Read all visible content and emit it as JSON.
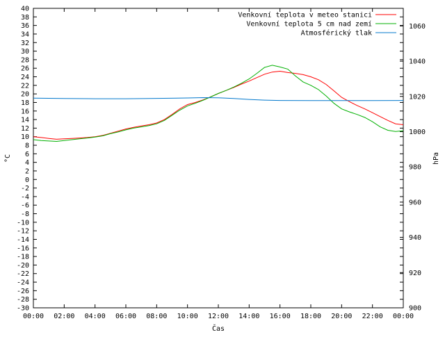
{
  "chart_data": {
    "type": "line",
    "xlabel": "Čas",
    "ylabel_left": "°C",
    "ylabel_right": "hPa",
    "ylim_left": [
      -30,
      40
    ],
    "ylim_right": [
      900,
      1070
    ],
    "xlim": [
      0,
      24
    ],
    "x_ticks": [
      "00:00",
      "02:00",
      "04:00",
      "06:00",
      "08:00",
      "10:00",
      "12:00",
      "14:00",
      "16:00",
      "18:00",
      "20:00",
      "22:00",
      "00:00"
    ],
    "y_left_ticks": [
      40,
      38,
      36,
      34,
      32,
      30,
      28,
      26,
      24,
      22,
      20,
      18,
      16,
      14,
      12,
      10,
      8,
      6,
      4,
      2,
      0,
      -2,
      -4,
      -6,
      -8,
      -10,
      -12,
      -14,
      -16,
      -18,
      -20,
      -22,
      -24,
      -26,
      -28,
      -30
    ],
    "y_right_ticks": [
      1060,
      1040,
      1020,
      1000,
      980,
      960,
      940,
      920,
      900
    ],
    "legend_position": "top-right",
    "grid": false,
    "series": [
      {
        "name": "Venkovní teplota v meteo stanici",
        "color": "#ff0000",
        "axis": "left",
        "x": [
          0,
          0.5,
          1,
          1.5,
          2,
          2.5,
          3,
          3.5,
          4,
          4.5,
          5,
          5.5,
          6,
          6.5,
          7,
          7.5,
          8,
          8.5,
          9,
          9.5,
          10,
          10.5,
          11,
          11.5,
          12,
          12.5,
          13,
          13.5,
          14,
          14.5,
          15,
          15.5,
          16,
          16.5,
          17,
          17.5,
          18,
          18.5,
          19,
          19.5,
          20,
          20.5,
          21,
          21.5,
          22,
          22.5,
          23,
          23.5,
          24
        ],
        "values": [
          10,
          9.8,
          9.6,
          9.4,
          9.5,
          9.6,
          9.7,
          9.8,
          10.0,
          10.3,
          10.8,
          11.3,
          11.8,
          12.2,
          12.5,
          12.8,
          13.2,
          14.0,
          15.2,
          16.5,
          17.5,
          18.0,
          18.6,
          19.3,
          20.1,
          20.8,
          21.5,
          22.3,
          23.0,
          23.8,
          24.6,
          25.1,
          25.3,
          25.0,
          24.8,
          24.5,
          24.0,
          23.3,
          22.2,
          20.7,
          19.2,
          18.2,
          17.3,
          16.5,
          15.6,
          14.7,
          13.8,
          13.0,
          12.8
        ]
      },
      {
        "name": "Venkovní teplota 5 cm nad zemí",
        "color": "#00b000",
        "axis": "left",
        "x": [
          0,
          0.5,
          1,
          1.5,
          2,
          2.5,
          3,
          3.5,
          4,
          4.5,
          5,
          5.5,
          6,
          6.5,
          7,
          7.5,
          8,
          8.5,
          9,
          9.5,
          10,
          10.5,
          11,
          11.5,
          12,
          12.5,
          13,
          13.5,
          14,
          14.5,
          15,
          15.5,
          16,
          16.5,
          17,
          17.5,
          18,
          18.5,
          19,
          19.5,
          20,
          20.5,
          21,
          21.5,
          22,
          22.5,
          23,
          23.5,
          24
        ],
        "values": [
          9.3,
          9.1,
          9.0,
          8.9,
          9.1,
          9.3,
          9.5,
          9.7,
          9.9,
          10.2,
          10.7,
          11.1,
          11.6,
          12.0,
          12.3,
          12.6,
          13.0,
          13.8,
          15.0,
          16.2,
          17.2,
          17.8,
          18.5,
          19.3,
          20.1,
          20.8,
          21.6,
          22.5,
          23.5,
          24.8,
          26.2,
          26.7,
          26.3,
          25.8,
          24.2,
          22.8,
          22.0,
          21.0,
          19.5,
          17.8,
          16.5,
          15.8,
          15.2,
          14.5,
          13.5,
          12.3,
          11.5,
          11.2,
          11.4
        ]
      },
      {
        "name": "Atmosférický tlak",
        "color": "#0077cc",
        "axis": "right",
        "x": [
          0,
          2,
          4,
          6,
          8,
          10,
          11,
          12,
          13,
          14,
          15,
          16,
          18,
          20,
          22,
          24
        ],
        "values": [
          1019,
          1018.8,
          1018.7,
          1018.7,
          1018.9,
          1019.1,
          1019.3,
          1019.2,
          1018.8,
          1018.3,
          1017.9,
          1017.7,
          1017.6,
          1017.6,
          1017.6,
          1017.7
        ]
      }
    ]
  }
}
